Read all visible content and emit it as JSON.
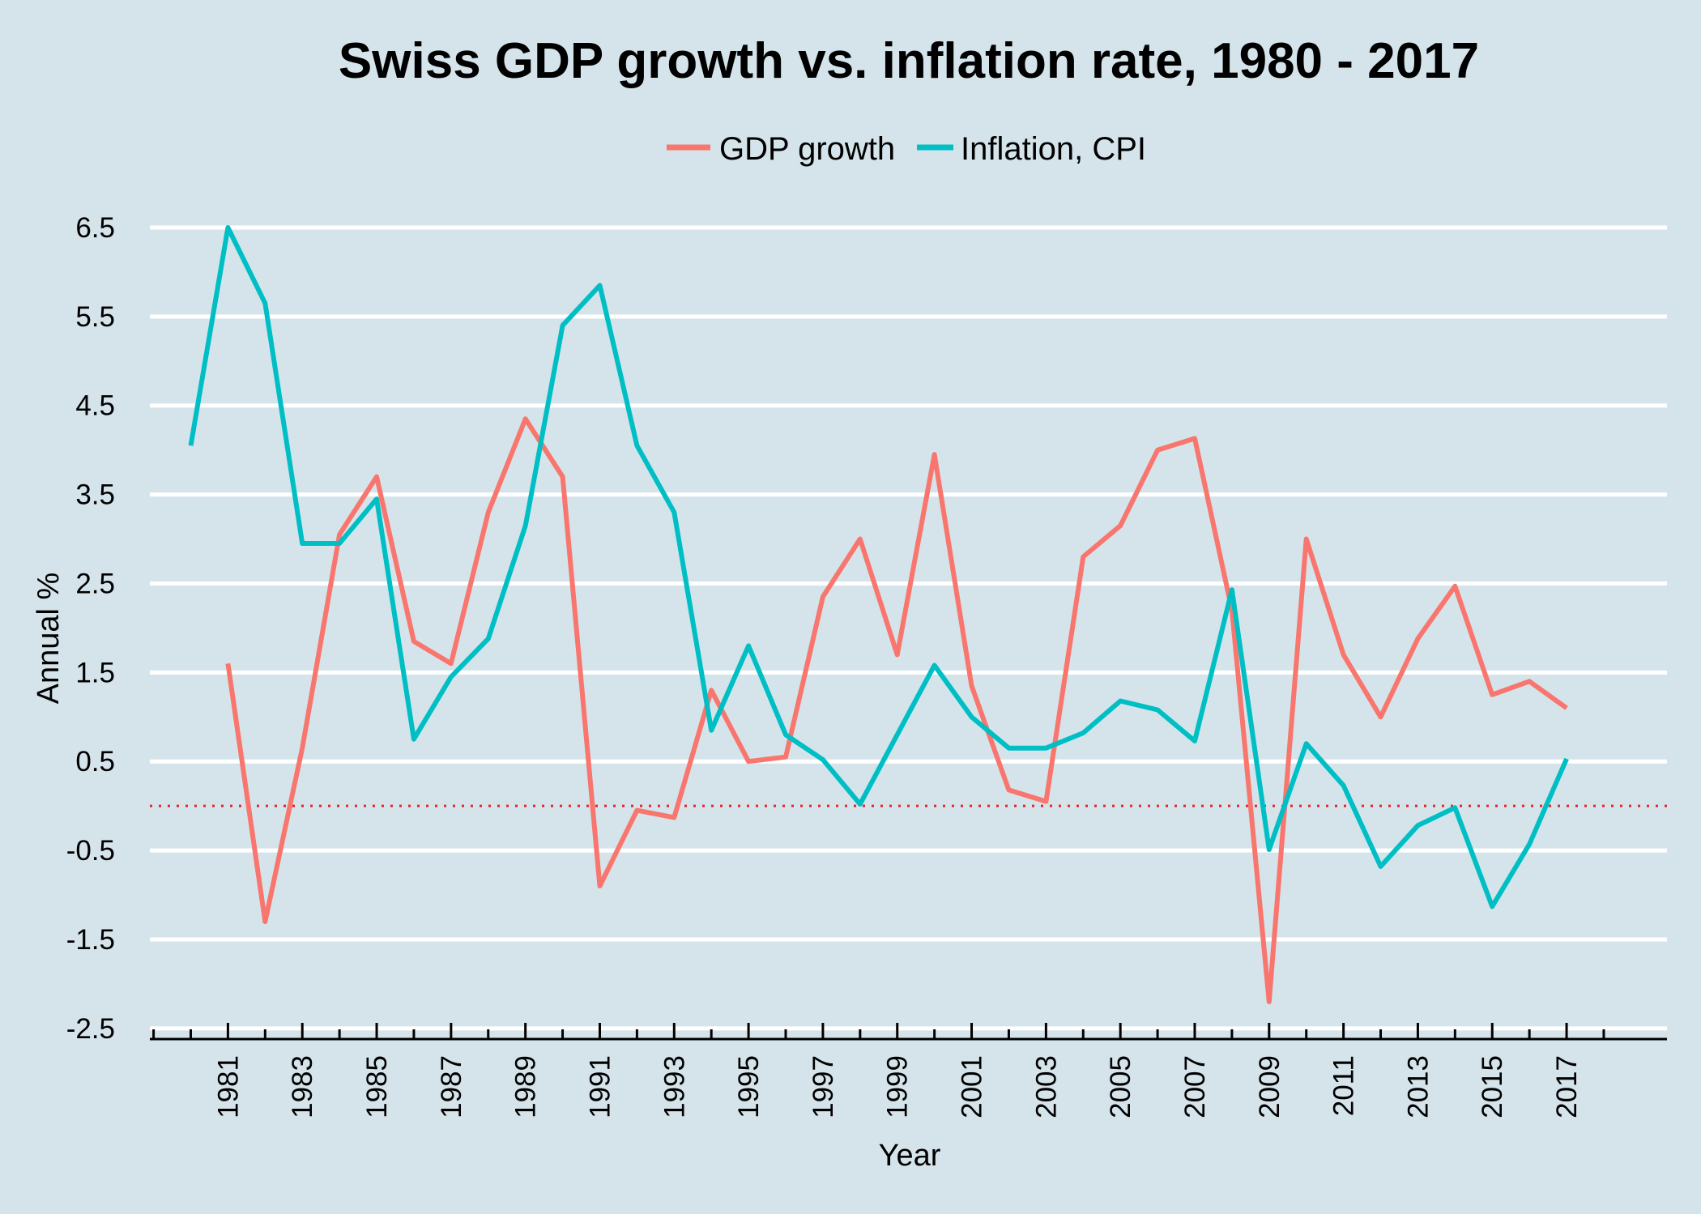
{
  "chart_data": {
    "type": "line",
    "title": "Swiss GDP growth vs. inflation rate, 1980 - 2017",
    "xlabel": "Year",
    "ylabel": "Annual %",
    "xlim": [
      1978.9,
      2019.7
    ],
    "ylim": [
      -2.62,
      6.6
    ],
    "yticks": [
      -2.5,
      -1.5,
      -0.5,
      0.5,
      1.5,
      2.5,
      3.5,
      4.5,
      5.5,
      6.5
    ],
    "ytick_labels": [
      "-2.5",
      "-1.5",
      "-0.5",
      "0.5",
      "1.5",
      "2.5",
      "3.5",
      "4.5",
      "5.5",
      "6.5"
    ],
    "xticks": [
      1981,
      1983,
      1985,
      1987,
      1989,
      1991,
      1993,
      1995,
      1997,
      1999,
      2001,
      2003,
      2005,
      2007,
      2009,
      2011,
      2013,
      2015,
      2017
    ],
    "xtick_labels": [
      "1981",
      "1983",
      "1985",
      "1987",
      "1989",
      "1991",
      "1993",
      "1995",
      "1997",
      "1999",
      "2001",
      "2003",
      "2005",
      "2007",
      "2009",
      "2011",
      "2013",
      "2015",
      "2017"
    ],
    "minor_xticks_every": 1,
    "reference_line": {
      "y": 0,
      "style": "dotted",
      "color": "#e8242a"
    },
    "grid": "horizontal",
    "legend_position": "top",
    "background": "#d5e4eb",
    "series": [
      {
        "name": "GDP growth",
        "color": "#f8766d",
        "x": [
          1981,
          1982,
          1983,
          1984,
          1985,
          1986,
          1987,
          1988,
          1989,
          1990,
          1991,
          1992,
          1993,
          1994,
          1995,
          1996,
          1997,
          1998,
          1999,
          2000,
          2001,
          2002,
          2003,
          2004,
          2005,
          2006,
          2007,
          2008,
          2009,
          2010,
          2011,
          2012,
          2013,
          2014,
          2015,
          2016,
          2017
        ],
        "values": [
          1.6,
          -1.3,
          0.65,
          3.05,
          3.7,
          1.85,
          1.6,
          3.3,
          4.35,
          3.7,
          -0.9,
          -0.05,
          -0.13,
          1.3,
          0.5,
          0.55,
          2.35,
          3.0,
          1.7,
          3.95,
          1.35,
          0.18,
          0.05,
          2.8,
          3.15,
          4.0,
          4.13,
          2.2,
          -2.2,
          3.0,
          1.7,
          1.0,
          1.88,
          2.47,
          1.25,
          1.4,
          1.1
        ]
      },
      {
        "name": "Inflation, CPI",
        "color": "#00bfc4",
        "x": [
          1980,
          1981,
          1982,
          1983,
          1984,
          1985,
          1986,
          1987,
          1988,
          1989,
          1990,
          1991,
          1992,
          1993,
          1994,
          1995,
          1996,
          1997,
          1998,
          1999,
          2000,
          2001,
          2002,
          2003,
          2004,
          2005,
          2006,
          2007,
          2008,
          2009,
          2010,
          2011,
          2012,
          2013,
          2014,
          2015,
          2016,
          2017
        ],
        "values": [
          4.05,
          6.5,
          5.65,
          2.95,
          2.95,
          3.45,
          0.75,
          1.45,
          1.88,
          3.15,
          5.4,
          5.85,
          4.05,
          3.3,
          0.85,
          1.8,
          0.8,
          0.52,
          0.02,
          0.8,
          1.58,
          1.0,
          0.65,
          0.65,
          0.82,
          1.18,
          1.08,
          0.73,
          2.43,
          -0.49,
          0.7,
          0.23,
          -0.68,
          -0.22,
          -0.02,
          -1.13,
          -0.43,
          0.53
        ]
      }
    ]
  }
}
